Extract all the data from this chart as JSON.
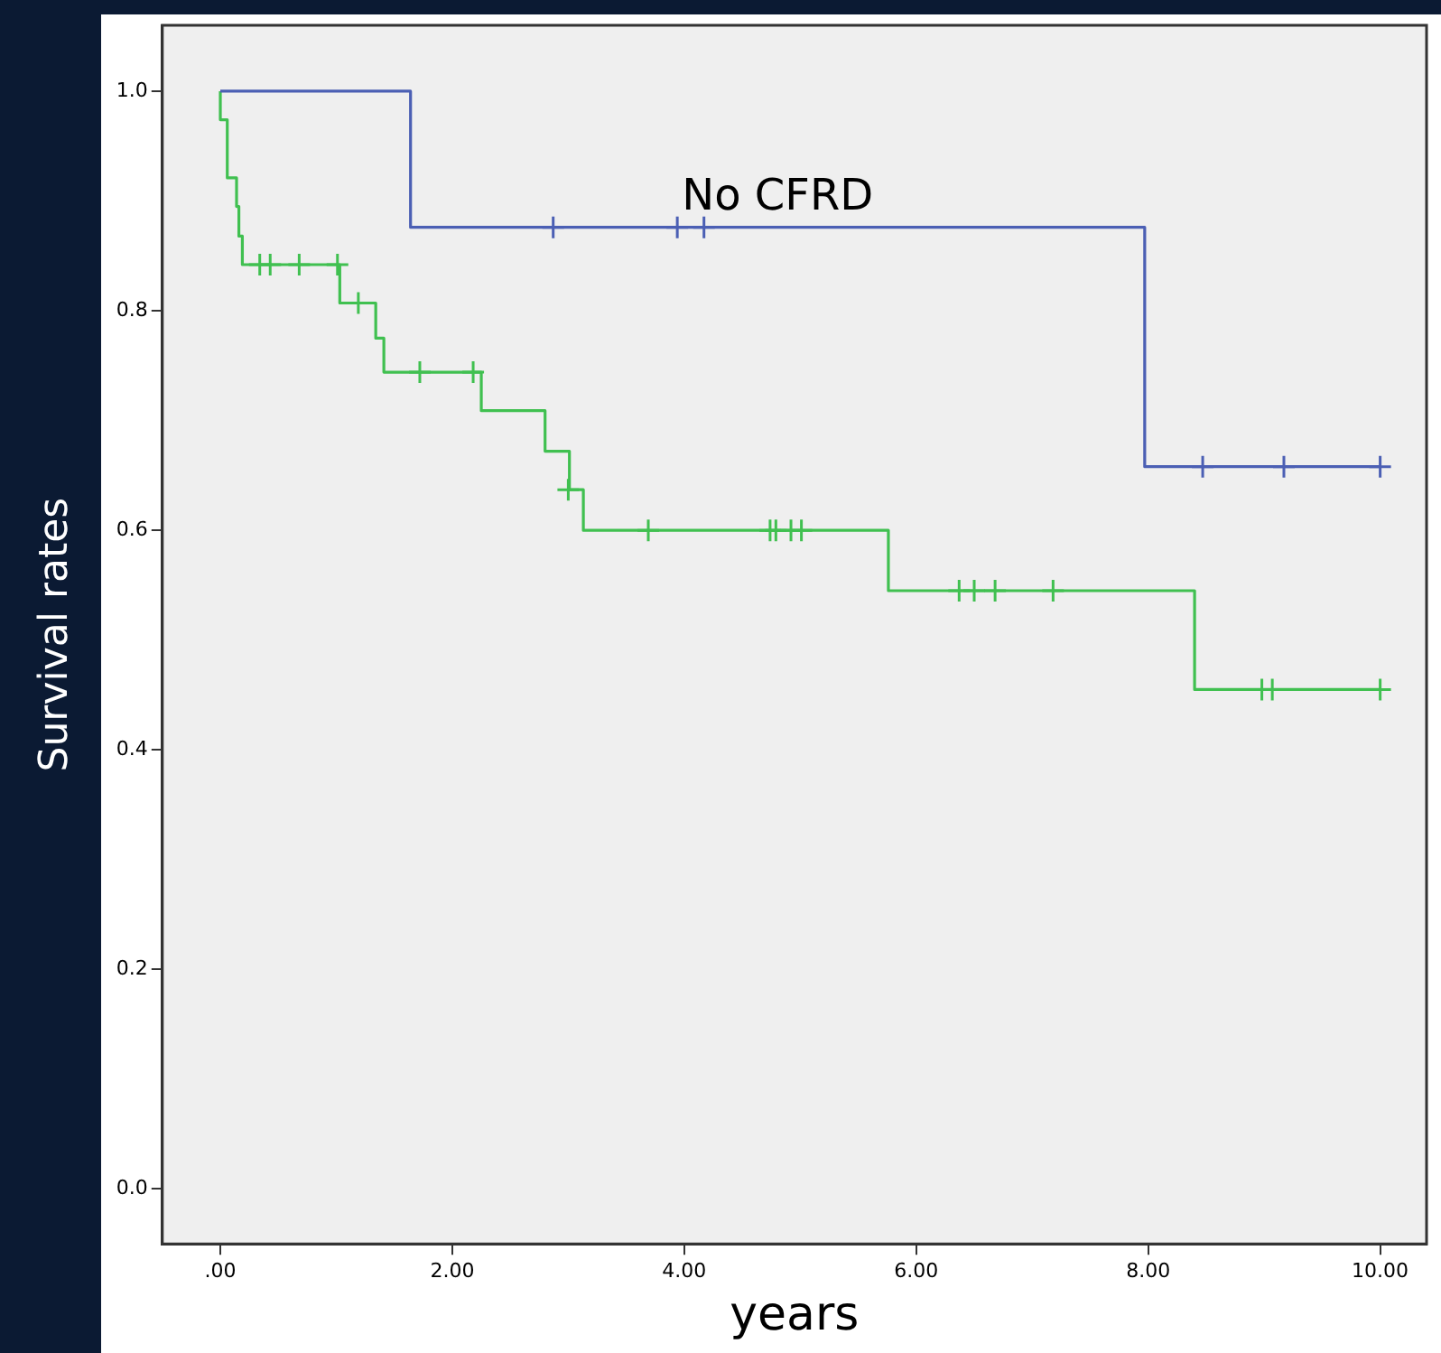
{
  "chart_data": {
    "type": "step",
    "xlabel": "years",
    "ylabel": "Survival rates",
    "xlim": [
      -0.5,
      10.4
    ],
    "ylim": [
      -0.05,
      1.06
    ],
    "xticks": [
      {
        "value": 0,
        "label": ".00"
      },
      {
        "value": 2,
        "label": "2.00"
      },
      {
        "value": 4,
        "label": "4.00"
      },
      {
        "value": 6,
        "label": "6.00"
      },
      {
        "value": 8,
        "label": "8.00"
      },
      {
        "value": 10,
        "label": "10.00"
      }
    ],
    "yticks": [
      {
        "value": 0,
        "label": "0.0"
      },
      {
        "value": 0.2,
        "label": "0.2"
      },
      {
        "value": 0.4,
        "label": "0.4"
      },
      {
        "value": 0.6,
        "label": "0.6"
      },
      {
        "value": 0.8,
        "label": "0.8"
      },
      {
        "value": 1,
        "label": "1.0"
      }
    ],
    "series": [
      {
        "name": "No CFRD",
        "color": "#4b5fb4",
        "marker": "none",
        "x": [
          0,
          1.64,
          7.97,
          10
        ],
        "values": [
          1,
          0.876,
          0.658,
          0.658
        ]
      },
      {
        "type": "scatter",
        "color": "#4b5fb4",
        "marker": "cross",
        "x": [
          2.87,
          3.94,
          4.17,
          8.47,
          9.17,
          10
        ],
        "values": [
          0.876,
          0.876,
          0.876,
          0.658,
          0.658,
          0.658
        ]
      },
      {
        "color": "#40c050",
        "marker": "none",
        "x": [
          0,
          0,
          0.06,
          0.06,
          0.14,
          0.16,
          0.19,
          1.03,
          1.34,
          1.41,
          2.25,
          2.8,
          3.01,
          3.13,
          5.76,
          8.4,
          10
        ],
        "values": [
          1,
          0.974,
          0.947,
          0.921,
          0.895,
          0.868,
          0.842,
          0.807,
          0.775,
          0.744,
          0.709,
          0.672,
          0.637,
          0.6,
          0.545,
          0.455,
          0.455
        ]
      },
      {
        "type": "scatter",
        "color": "#40c050",
        "marker": "cross",
        "x": [
          0.34,
          0.43,
          0.68,
          1.01,
          1.19,
          1.72,
          2.18,
          3.0,
          3.69,
          4.74,
          4.79,
          4.92,
          5.01,
          6.37,
          6.5,
          6.68,
          7.18,
          8.98,
          9.07,
          10
        ],
        "values": [
          0.842,
          0.842,
          0.842,
          0.842,
          0.807,
          0.744,
          0.744,
          0.637,
          0.6,
          0.6,
          0.6,
          0.6,
          0.6,
          0.545,
          0.545,
          0.545,
          0.545,
          0.455,
          0.455,
          0.455
        ]
      }
    ]
  }
}
